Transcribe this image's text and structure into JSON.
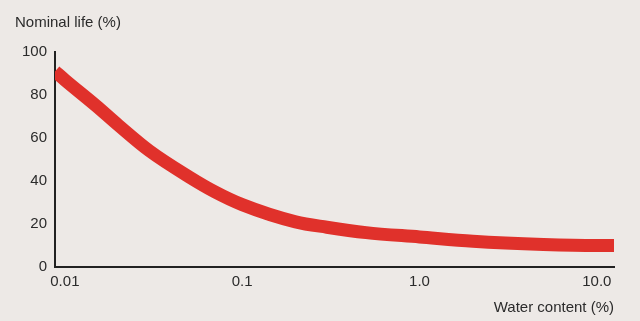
{
  "chart_data": {
    "type": "line",
    "xlabel": "Water content (%)",
    "ylabel": "Nominal life (%)",
    "x": [
      0.0088,
      0.01,
      0.015,
      0.02,
      0.03,
      0.05,
      0.07,
      0.1,
      0.2,
      0.3,
      0.5,
      1,
      2,
      5,
      10,
      12.5
    ],
    "values": [
      91,
      87,
      75,
      66,
      54,
      42,
      35,
      29,
      21,
      18.5,
      16,
      14,
      12,
      10.5,
      10,
      10
    ],
    "color": "#e0312b",
    "log": "x",
    "xlim": [
      0.0088,
      12.5
    ],
    "ylim": [
      0,
      100
    ],
    "xticks": [
      0.01,
      0.1,
      {
        "value": 1,
        "label": "1.0"
      },
      {
        "value": 10,
        "label": "10.0"
      }
    ],
    "yticks": [
      0,
      20,
      40,
      60,
      80,
      100
    ],
    "grid": false
  }
}
